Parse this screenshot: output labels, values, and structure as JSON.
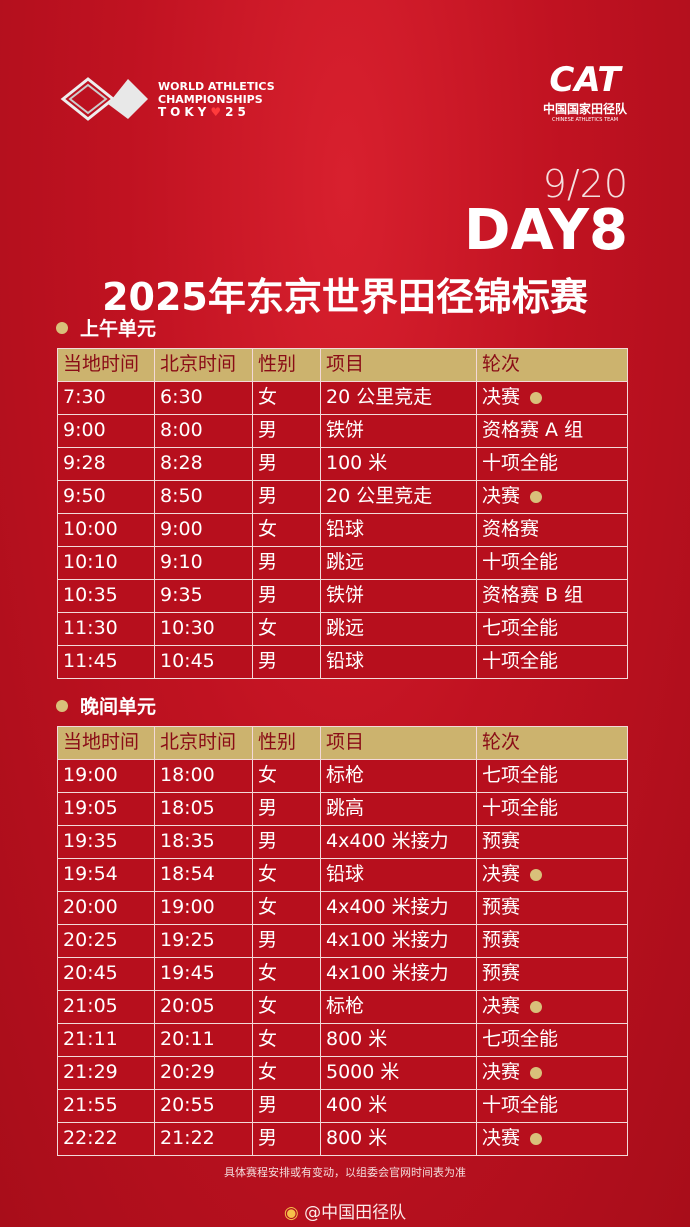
{
  "header": {
    "event_logo": [
      "WORLD ATHLETICS",
      "CHAMPIONSHIPS",
      "TOKY",
      "25"
    ],
    "team_logo": {
      "mark": "CAT",
      "name": "中国国家田径队",
      "name_en": "CHINESE ATHLETICS TEAM"
    },
    "date": "9/20",
    "day": "DAY8",
    "title": "2025年东京世界田径锦标赛"
  },
  "sessions": [
    {
      "title": "上午单元",
      "columns": [
        "当地时间",
        "北京时间",
        "性别",
        "项目",
        "轮次"
      ],
      "rows": [
        {
          "cells": [
            "7:30",
            "6:30",
            "女",
            "20 公里竞走",
            "决赛"
          ],
          "dot": true
        },
        {
          "cells": [
            "9:00",
            "8:00",
            "男",
            "铁饼",
            "资格赛 A 组"
          ],
          "dot": false
        },
        {
          "cells": [
            "9:28",
            "8:28",
            "男",
            "100 米",
            "十项全能"
          ],
          "dot": false
        },
        {
          "cells": [
            "9:50",
            "8:50",
            "男",
            "20 公里竞走",
            "决赛"
          ],
          "dot": true
        },
        {
          "cells": [
            "10:00",
            "9:00",
            "女",
            "铅球",
            "资格赛"
          ],
          "dot": false
        },
        {
          "cells": [
            "10:10",
            "9:10",
            "男",
            "跳远",
            "十项全能"
          ],
          "dot": false
        },
        {
          "cells": [
            "10:35",
            "9:35",
            "男",
            "铁饼",
            "资格赛 B 组"
          ],
          "dot": false
        },
        {
          "cells": [
            "11:30",
            "10:30",
            "女",
            "跳远",
            "七项全能"
          ],
          "dot": false
        },
        {
          "cells": [
            "11:45",
            "10:45",
            "男",
            "铅球",
            "十项全能"
          ],
          "dot": false
        }
      ]
    },
    {
      "title": "晚间单元",
      "columns": [
        "当地时间",
        "北京时间",
        "性别",
        "项目",
        "轮次"
      ],
      "rows": [
        {
          "cells": [
            "19:00",
            "18:00",
            "女",
            "标枪",
            "七项全能"
          ],
          "dot": false
        },
        {
          "cells": [
            "19:05",
            "18:05",
            "男",
            "跳高",
            "十项全能"
          ],
          "dot": false
        },
        {
          "cells": [
            "19:35",
            "18:35",
            "男",
            "4x400 米接力",
            "预赛"
          ],
          "dot": false
        },
        {
          "cells": [
            "19:54",
            "18:54",
            "女",
            "铅球",
            "决赛"
          ],
          "dot": true
        },
        {
          "cells": [
            "20:00",
            "19:00",
            "女",
            "4x400 米接力",
            "预赛"
          ],
          "dot": false
        },
        {
          "cells": [
            "20:25",
            "19:25",
            "男",
            "4x100 米接力",
            "预赛"
          ],
          "dot": false
        },
        {
          "cells": [
            "20:45",
            "19:45",
            "女",
            "4x100 米接力",
            "预赛"
          ],
          "dot": false
        },
        {
          "cells": [
            "21:05",
            "20:05",
            "女",
            "标枪",
            "决赛"
          ],
          "dot": true
        },
        {
          "cells": [
            "21:11",
            "20:11",
            "女",
            "800 米",
            "七项全能"
          ],
          "dot": false
        },
        {
          "cells": [
            "21:29",
            "20:29",
            "女",
            "5000 米",
            "决赛"
          ],
          "dot": true
        },
        {
          "cells": [
            "21:55",
            "20:55",
            "男",
            "400 米",
            "十项全能"
          ],
          "dot": false
        },
        {
          "cells": [
            "22:22",
            "21:22",
            "男",
            "800 米",
            "决赛"
          ],
          "dot": true
        }
      ]
    }
  ],
  "footer": {
    "note": "具体赛程安排或有变动，以组委会官网时间表为准",
    "account": "@中国田径队"
  }
}
